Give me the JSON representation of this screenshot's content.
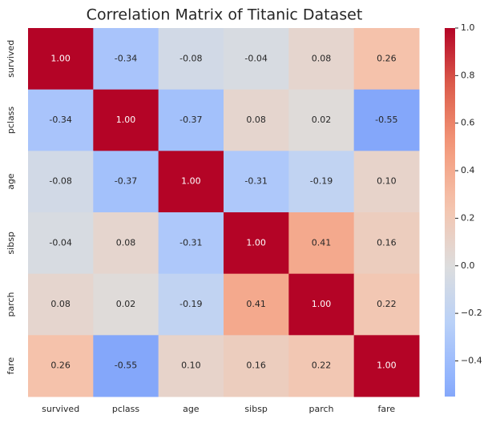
{
  "chart_data": {
    "type": "heatmap",
    "title": "Correlation Matrix of Titanic Dataset",
    "x_categories": [
      "survived",
      "pclass",
      "age",
      "sibsp",
      "parch",
      "fare"
    ],
    "y_categories": [
      "survived",
      "pclass",
      "age",
      "sibsp",
      "parch",
      "fare"
    ],
    "values": [
      [
        1.0,
        -0.34,
        -0.08,
        -0.04,
        0.08,
        0.26
      ],
      [
        -0.34,
        1.0,
        -0.37,
        0.08,
        0.02,
        -0.55
      ],
      [
        -0.08,
        -0.37,
        1.0,
        -0.31,
        -0.19,
        0.1
      ],
      [
        -0.04,
        0.08,
        -0.31,
        1.0,
        0.41,
        0.16
      ],
      [
        0.08,
        0.02,
        -0.19,
        0.41,
        1.0,
        0.22
      ],
      [
        0.26,
        -0.55,
        0.1,
        0.16,
        0.22,
        1.0
      ]
    ],
    "value_labels": [
      [
        "1.00",
        "-0.34",
        "-0.08",
        "-0.04",
        "0.08",
        "0.26"
      ],
      [
        "-0.34",
        "1.00",
        "-0.37",
        "0.08",
        "0.02",
        "-0.55"
      ],
      [
        "-0.08",
        "-0.37",
        "1.00",
        "-0.31",
        "-0.19",
        "0.10"
      ],
      [
        "-0.04",
        "0.08",
        "-0.31",
        "1.00",
        "0.41",
        "0.16"
      ],
      [
        "0.08",
        "0.02",
        "-0.19",
        "0.41",
        "1.00",
        "0.22"
      ],
      [
        "0.26",
        "-0.55",
        "0.10",
        "0.16",
        "0.22",
        "1.00"
      ]
    ],
    "colormap": "coolwarm",
    "center": 0,
    "colorbar_lim": [
      -0.55,
      1.0
    ],
    "colorbar_ticks": [
      {
        "value": 1.0,
        "label": "1.0"
      },
      0.8,
      0.6,
      0.4,
      0.2,
      {
        "value": 0.0,
        "label": "0.0"
      },
      {
        "value": -0.2,
        "label": "−0.2"
      },
      {
        "value": -0.4,
        "label": "−0.4"
      }
    ]
  }
}
